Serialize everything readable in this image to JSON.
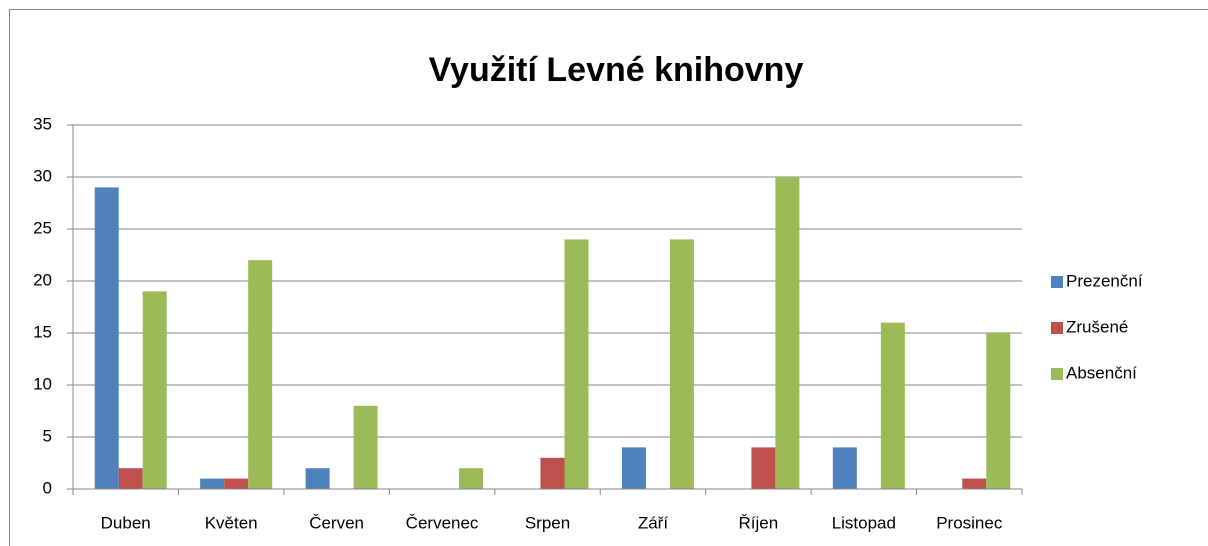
{
  "chart_data": {
    "type": "bar",
    "title": "Využití Levné knihovny",
    "categories": [
      "Duben",
      "Květen",
      "Červen",
      "Červenec",
      "Srpen",
      "Září",
      "Říjen",
      "Listopad",
      "Prosinec"
    ],
    "series": [
      {
        "name": "Prezenční",
        "color": "#4f81bd",
        "values": [
          29,
          1,
          2,
          0,
          0,
          4,
          0,
          4,
          0
        ]
      },
      {
        "name": "Zrušené",
        "color": "#c0504d",
        "values": [
          2,
          1,
          0,
          0,
          3,
          0,
          4,
          0,
          1
        ]
      },
      {
        "name": "Absenční",
        "color": "#9bbb59",
        "values": [
          19,
          22,
          8,
          2,
          24,
          24,
          30,
          16,
          15
        ]
      }
    ],
    "ylim": [
      0,
      35
    ],
    "yticks": [
      0,
      5,
      10,
      15,
      20,
      25,
      30,
      35
    ],
    "grid": true,
    "legend": "right"
  }
}
